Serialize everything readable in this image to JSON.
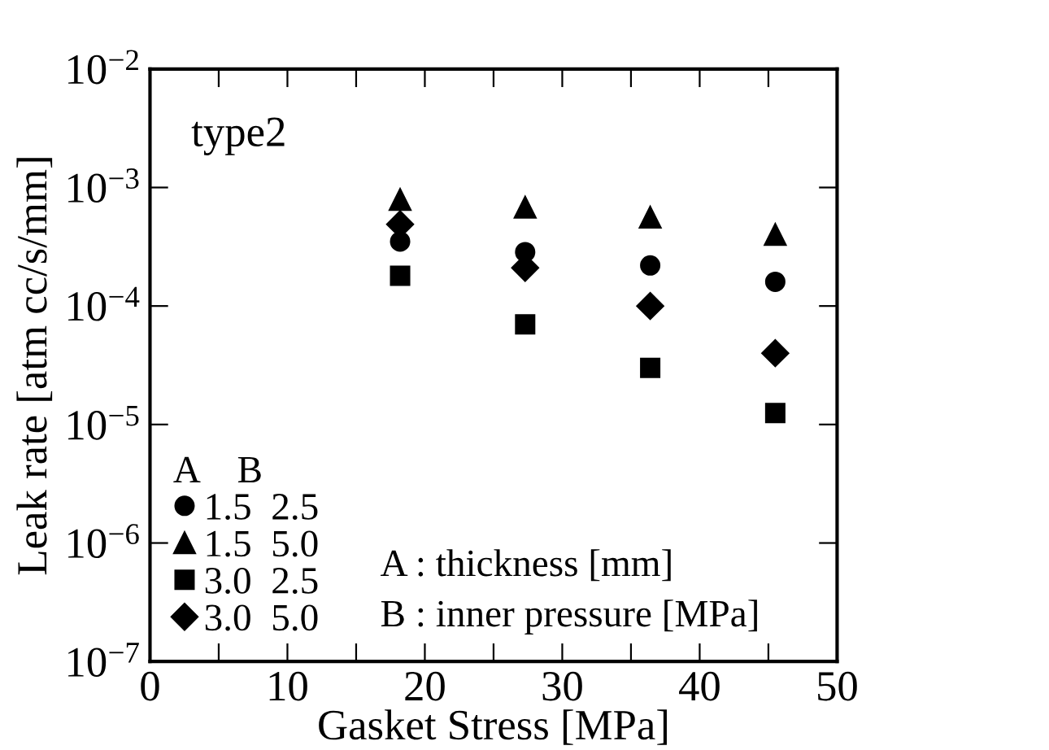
{
  "chart_data": {
    "type": "scatter",
    "xlabel": "Gasket Stress [MPa]",
    "ylabel": "Leak rate [atm cc/s/mm]",
    "x": [
      18.2,
      27.3,
      36.4,
      45.5
    ],
    "legend_title": "A    B",
    "series": [
      {
        "name": "1.5  2.5",
        "color": "#000000",
        "marker": "circle",
        "values": [
          0.00035,
          0.000285,
          0.00022,
          0.00016
        ]
      },
      {
        "name": "1.5  5.0",
        "color": "#000000",
        "marker": "triangle",
        "values": [
          0.00079,
          0.00068,
          0.00056,
          0.0004
        ]
      },
      {
        "name": "3.0  2.5",
        "color": "#000000",
        "marker": "square",
        "values": [
          0.00018,
          7e-05,
          3e-05,
          1.25e-05
        ]
      },
      {
        "name": "3.0  5.0",
        "color": "#000000",
        "marker": "diamond",
        "values": [
          0.00049,
          0.00021,
          0.0001,
          4e-05
        ]
      }
    ],
    "log": "y",
    "xlim": [
      0,
      50
    ],
    "xticks": [
      0,
      {
        "value": 5,
        "label": null
      },
      10,
      {
        "value": 15,
        "label": null
      },
      20,
      {
        "value": 25,
        "label": null
      },
      30,
      {
        "value": 35,
        "label": null
      },
      40,
      {
        "value": 45,
        "label": null
      },
      50
    ],
    "ylim": [
      1e-07,
      0.01
    ],
    "yticks": [
      {
        "value": 1e-07,
        "label": "10$^{−7}$"
      },
      {
        "value": 1e-06,
        "label": "10$^{−6}$"
      },
      {
        "value": 1e-05,
        "label": "10$^{−5}$"
      },
      {
        "value": 0.0001,
        "label": "10$^{−4}$"
      },
      {
        "value": 0.001,
        "label": "10$^{−3}$"
      },
      {
        "value": 0.01,
        "label": "10$^{−2}$"
      }
    ],
    "grid": false,
    "legend": "bottom left",
    "annotations": [
      "type2",
      "A : thickness [mm]",
      "B : inner pressure [MPa]"
    ]
  }
}
